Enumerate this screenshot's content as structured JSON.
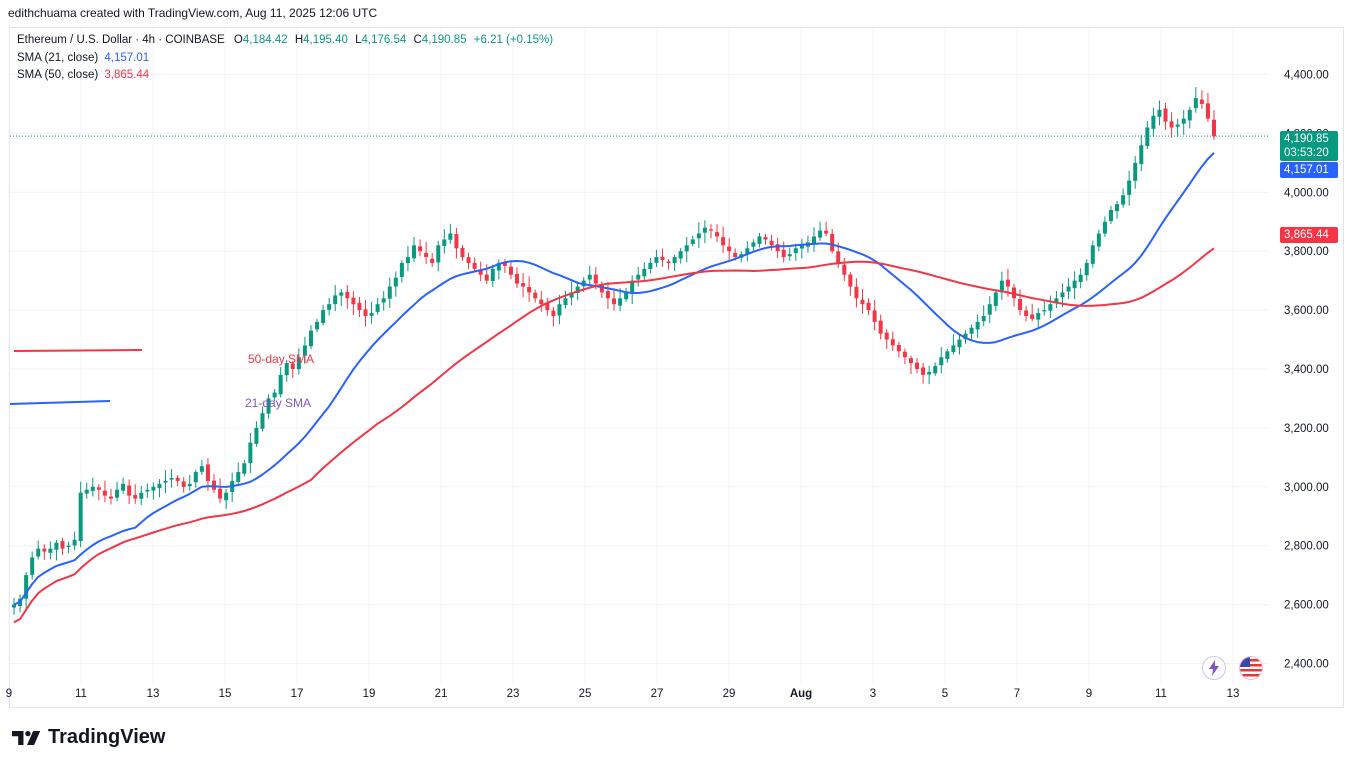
{
  "caption": "edithchuama created with TradingView.com, Aug 11, 2025 12:06 UTC",
  "legend": {
    "symbol": "Ethereum / U.S. Dollar · 4h · COINBASE",
    "open_label": "O",
    "open": "4,184.42",
    "high_label": "H",
    "high": "4,195.40",
    "low_label": "L",
    "low": "4,176.54",
    "close_label": "C",
    "close": "4,190.85",
    "change": "+6.21 (+0.15%)",
    "sma21_label": "SMA (21, close)",
    "sma21_value": "4,157.01",
    "sma50_label": "SMA (50, close)",
    "sma50_value": "3,865.44"
  },
  "price_badges": {
    "last_price": "4,190.85",
    "countdown": "03:53:20",
    "sma21": "4,157.01",
    "sma50": "3,865.44"
  },
  "brand": "TradingView",
  "colors": {
    "up": "#089981",
    "down": "#f23645",
    "sma21": "#2962ff",
    "sma50": "#f23645",
    "annot": "#7e57c2"
  },
  "chart_data": {
    "type": "candlestick",
    "title": "Ethereum / U.S. Dollar · 4h · COINBASE",
    "y_ticks": [
      "2,400.00",
      "2,600.00",
      "2,800.00",
      "3,000.00",
      "3,200.00",
      "3,400.00",
      "3,600.00",
      "3,800.00",
      "4,000.00",
      "4,200.00",
      "4,400.00"
    ],
    "ylim": [
      2400,
      4400
    ],
    "x_ticks": [
      "9",
      "11",
      "13",
      "15",
      "17",
      "19",
      "21",
      "23",
      "25",
      "27",
      "29",
      "Aug",
      "3",
      "5",
      "7",
      "9",
      "11",
      "13"
    ],
    "annotations": [
      "50-day SMA",
      "21-day SMA"
    ],
    "candles_4h_approx": [
      2600,
      2620,
      2700,
      2760,
      2790,
      2780,
      2790,
      2810,
      2790,
      2800,
      2820,
      2980,
      2990,
      3000,
      2990,
      2970,
      2960,
      2990,
      3010,
      2970,
      2960,
      2980,
      2990,
      3000,
      3010,
      3020,
      3030,
      3020,
      3000,
      3010,
      3050,
      3070,
      3020,
      2990,
      2960,
      2980,
      3020,
      3050,
      3080,
      3150,
      3200,
      3250,
      3300,
      3320,
      3380,
      3420,
      3400,
      3440,
      3480,
      3530,
      3560,
      3600,
      3620,
      3650,
      3660,
      3640,
      3620,
      3600,
      3580,
      3590,
      3620,
      3640,
      3680,
      3710,
      3760,
      3780,
      3820,
      3800,
      3780,
      3760,
      3820,
      3840,
      3860,
      3810,
      3780,
      3760,
      3740,
      3720,
      3700,
      3740,
      3760,
      3750,
      3720,
      3690,
      3680,
      3660,
      3640,
      3620,
      3600,
      3580,
      3620,
      3640,
      3660,
      3680,
      3700,
      3720,
      3690,
      3660,
      3640,
      3620,
      3640,
      3660,
      3700,
      3720,
      3740,
      3760,
      3780,
      3770,
      3760,
      3780,
      3800,
      3820,
      3840,
      3860,
      3880,
      3870,
      3850,
      3820,
      3800,
      3780,
      3790,
      3810,
      3830,
      3850,
      3840,
      3820,
      3800,
      3780,
      3790,
      3810,
      3820,
      3830,
      3850,
      3870,
      3860,
      3800,
      3760,
      3720,
      3680,
      3640,
      3620,
      3600,
      3560,
      3520,
      3500,
      3480,
      3460,
      3440,
      3420,
      3400,
      3380,
      3390,
      3410,
      3440,
      3460,
      3480,
      3500,
      3520,
      3540,
      3560,
      3580,
      3620,
      3660,
      3700,
      3680,
      3640,
      3600,
      3580,
      3570,
      3590,
      3600,
      3620,
      3640,
      3660,
      3680,
      3700,
      3720,
      3760,
      3820,
      3860,
      3900,
      3940,
      3960,
      3990,
      4040,
      4100,
      4160,
      4220,
      4260,
      4280,
      4240,
      4220,
      4230,
      4250,
      4280,
      4320,
      4300,
      4250,
      4190
    ],
    "series": [
      {
        "name": "SMA (21, close)",
        "last": 4157.01
      },
      {
        "name": "SMA (50, close)",
        "last": 3865.44
      }
    ]
  }
}
